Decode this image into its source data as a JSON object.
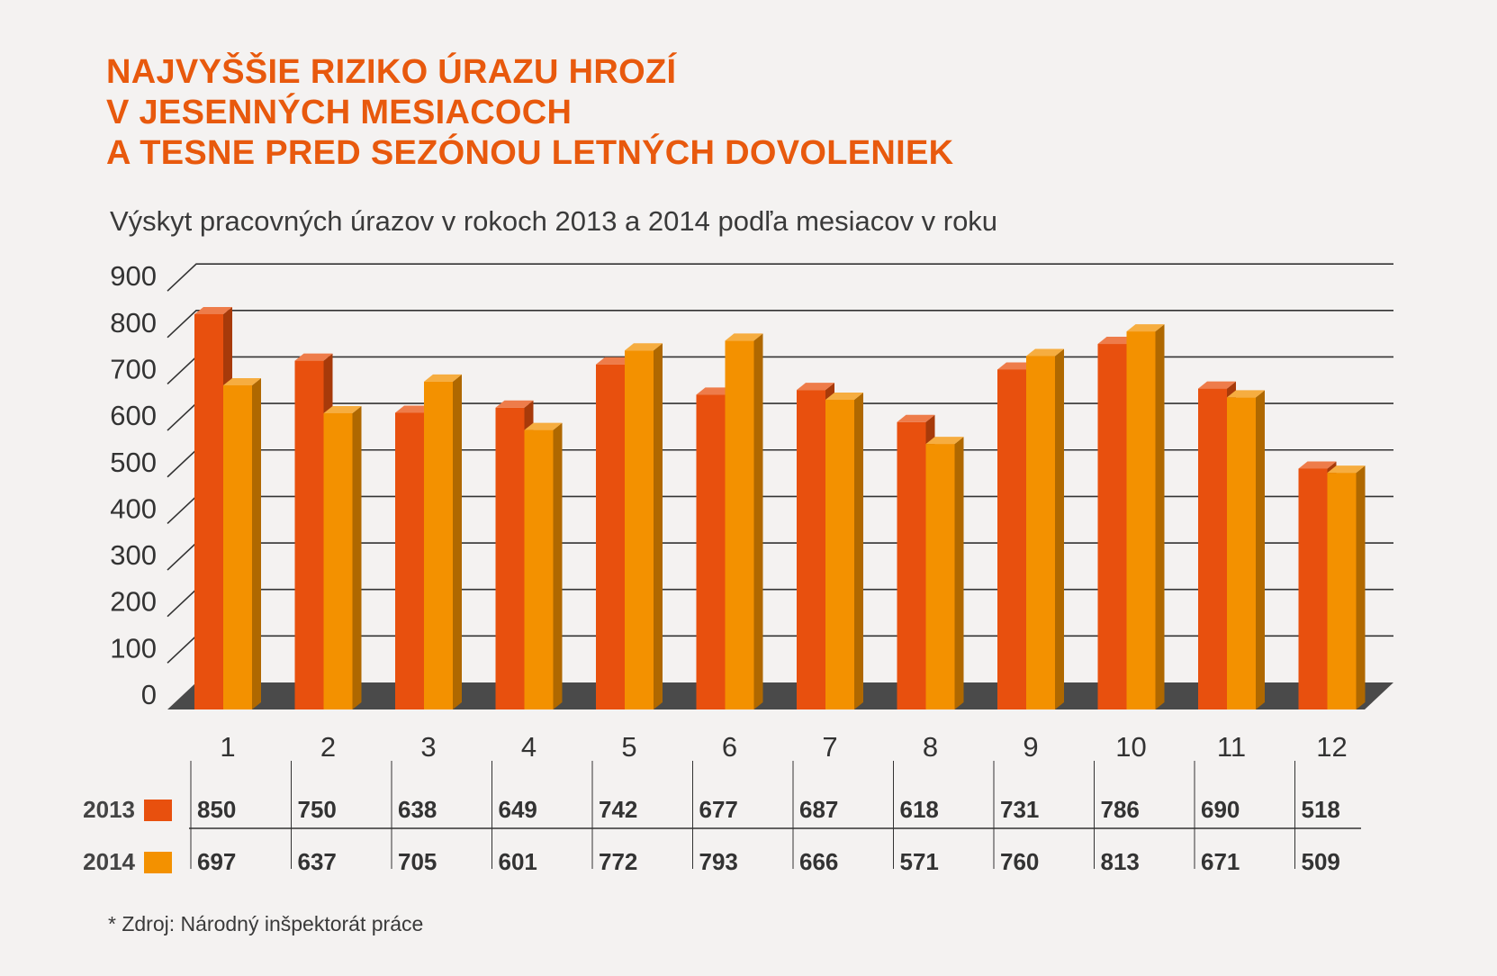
{
  "title_lines": [
    "NAJVYŠŠIE RIZIKO ÚRAZU HROZÍ",
    "V JESENNÝCH MESIACOCH",
    "A TESNE PRED SEZÓNOU LETNÝCH DOVOLENIEK"
  ],
  "subtitle": "Výskyt pracovných úrazov v rokoch 2013 a 2014 podľa mesiacov v roku",
  "source": "* Zdroj: Národný inšpektorát práce",
  "colors": {
    "title": "#e8590d",
    "series_2013": "#e8500e",
    "series_2014": "#f39100",
    "floor": "#4a4a4a",
    "grid": "#333333",
    "text": "#333333",
    "background": "#f4f2f1"
  },
  "chart_data": {
    "type": "bar",
    "categories": [
      "1",
      "2",
      "3",
      "4",
      "5",
      "6",
      "7",
      "8",
      "9",
      "10",
      "11",
      "12"
    ],
    "series": [
      {
        "name": "2013",
        "values": [
          850,
          750,
          638,
          649,
          742,
          677,
          687,
          618,
          731,
          786,
          690,
          518
        ]
      },
      {
        "name": "2014",
        "values": [
          697,
          637,
          705,
          601,
          772,
          793,
          666,
          571,
          760,
          813,
          671,
          509
        ]
      }
    ],
    "ylim": [
      0,
      900
    ],
    "yticks": [
      0,
      100,
      200,
      300,
      400,
      500,
      600,
      700,
      800,
      900
    ],
    "grid": true,
    "style": "3d",
    "legend": "data table below chart"
  }
}
